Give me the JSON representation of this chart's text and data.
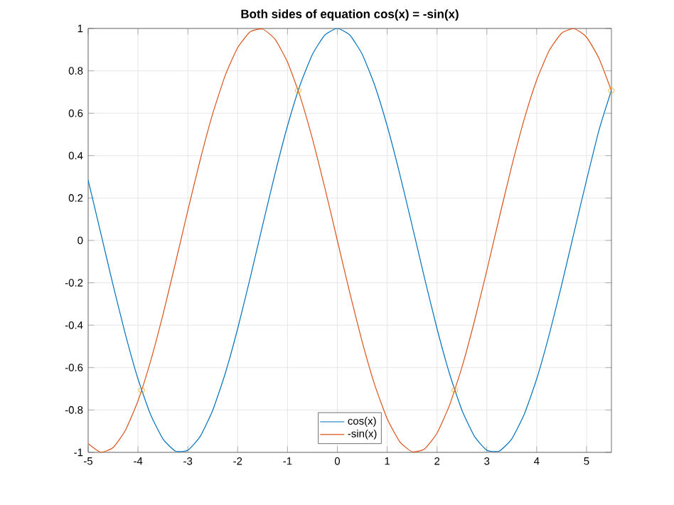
{
  "chart_data": {
    "type": "line",
    "title": "Both sides of equation cos(x) = -sin(x)",
    "x": [
      -5,
      -4.75,
      -4.5,
      -4.25,
      -4,
      -3.75,
      -3.5,
      -3.25,
      -3,
      -2.75,
      -2.5,
      -2.25,
      -2,
      -1.75,
      -1.5,
      -1.25,
      -1,
      -0.75,
      -0.5,
      -0.25,
      0,
      0.25,
      0.5,
      0.75,
      1,
      1.25,
      1.5,
      1.75,
      2,
      2.25,
      2.5,
      2.75,
      3,
      3.25,
      3.5,
      3.75,
      4,
      4.25,
      4.5,
      4.75,
      5,
      5.25,
      5.5
    ],
    "series": [
      {
        "name": "cos(x)",
        "color": "#0072bd",
        "values": [
          0.2837,
          0.0376,
          -0.2108,
          -0.4461,
          -0.6536,
          -0.8206,
          -0.9365,
          -0.9941,
          -0.99,
          -0.9243,
          -0.8011,
          -0.6282,
          -0.4161,
          -0.1782,
          0.0707,
          0.3153,
          0.5403,
          0.7317,
          0.8776,
          0.9689,
          1,
          0.9689,
          0.8776,
          0.7317,
          0.5403,
          0.3153,
          0.0707,
          -0.1782,
          -0.4161,
          -0.6282,
          -0.8011,
          -0.9243,
          -0.99,
          -0.9941,
          -0.9365,
          -0.8206,
          -0.6536,
          -0.4461,
          -0.2108,
          0.0376,
          0.2837,
          0.5199,
          0.7087
        ]
      },
      {
        "name": "-sin(x)",
        "color": "#d95319",
        "values": [
          -0.9589,
          -0.9993,
          -0.9775,
          -0.895,
          -0.7568,
          -0.5716,
          -0.3508,
          -0.1082,
          0.1411,
          0.3817,
          0.5985,
          0.7781,
          0.9093,
          0.984,
          0.9975,
          0.949,
          0.8415,
          0.6816,
          0.4794,
          0.2474,
          0,
          -0.2474,
          -0.4794,
          -0.6816,
          -0.8415,
          -0.949,
          -0.9975,
          -0.984,
          -0.9093,
          -0.7781,
          -0.5985,
          -0.3817,
          -0.1411,
          0.1082,
          0.3508,
          0.5716,
          0.7568,
          0.895,
          0.9775,
          0.9993,
          0.9589,
          0.8589,
          0.7055
        ]
      },
      {
        "type": "scatter",
        "marker": "circle",
        "color": "#edb120",
        "x": [
          -3.927,
          -0.785,
          2.356,
          5.498
        ],
        "values": [
          -0.707,
          0.707,
          -0.707,
          0.707
        ]
      }
    ],
    "xlim": [
      -5,
      5.5
    ],
    "ylim": [
      -1,
      1
    ],
    "xticks": [
      -5,
      -4,
      -3,
      -2,
      -1,
      0,
      1,
      2,
      3,
      4,
      5
    ],
    "yticks": [
      -1,
      -0.8,
      -0.6,
      -0.4,
      -0.2,
      0,
      0.2,
      0.4,
      0.6,
      0.8,
      1
    ],
    "grid": true,
    "legend": "bottom"
  }
}
